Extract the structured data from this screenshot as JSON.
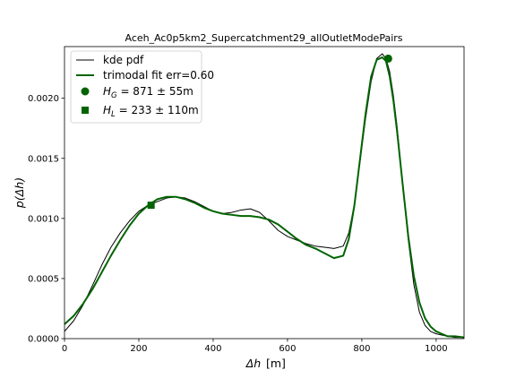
{
  "chart_data": {
    "type": "line",
    "title": "Aceh_Ac0p5km2_Supercatchment29_allOutletModePairs",
    "xlabel": {
      "symbol": "Δh",
      "unit": "[m]"
    },
    "ylabel": "p(Δh)",
    "xlim": [
      0,
      1075
    ],
    "ylim": [
      0,
      0.00243
    ],
    "xticks": [
      0,
      200,
      400,
      600,
      800,
      1000
    ],
    "xtick_labels": [
      "0",
      "200",
      "400",
      "600",
      "800",
      "1000"
    ],
    "yticks": [
      0,
      0.0005,
      0.001,
      0.0015,
      0.002
    ],
    "ytick_labels": [
      "0.0000",
      "0.0005",
      "0.0010",
      "0.0015",
      "0.0020"
    ],
    "grid": false,
    "legend_position": "top-left",
    "series": [
      {
        "name": "kde pdf",
        "color": "#000000",
        "x": [
          0,
          25,
          50,
          75,
          100,
          125,
          150,
          175,
          200,
          225,
          250,
          275,
          300,
          325,
          350,
          375,
          400,
          425,
          450,
          475,
          500,
          525,
          550,
          575,
          600,
          625,
          650,
          675,
          700,
          725,
          750,
          765,
          780,
          795,
          810,
          825,
          840,
          855,
          865,
          875,
          885,
          895,
          910,
          925,
          940,
          955,
          970,
          985,
          1000,
          1015,
          1030,
          1050,
          1075
        ],
        "y": [
          6e-05,
          0.00015,
          0.00028,
          0.00044,
          0.00061,
          0.00076,
          0.00088,
          0.00098,
          0.00106,
          0.00111,
          0.00114,
          0.00117,
          0.00118,
          0.00117,
          0.00114,
          0.0011,
          0.00106,
          0.00104,
          0.00105,
          0.00107,
          0.00108,
          0.00105,
          0.00098,
          0.0009,
          0.00085,
          0.00082,
          0.00079,
          0.00077,
          0.00076,
          0.00075,
          0.00077,
          0.00088,
          0.00112,
          0.00147,
          0.00183,
          0.00214,
          0.00233,
          0.00237,
          0.00233,
          0.00222,
          0.00202,
          0.00176,
          0.00128,
          0.00082,
          0.00045,
          0.00022,
          0.00011,
          6e-05,
          4e-05,
          3e-05,
          2e-05,
          1e-05,
          1e-05
        ]
      },
      {
        "name": "trimodal fit err=0.60",
        "color": "#006400",
        "x": [
          0,
          25,
          50,
          75,
          100,
          125,
          150,
          175,
          200,
          225,
          250,
          275,
          300,
          325,
          350,
          375,
          400,
          425,
          450,
          475,
          500,
          525,
          550,
          575,
          600,
          625,
          650,
          675,
          700,
          725,
          750,
          765,
          780,
          795,
          810,
          825,
          840,
          855,
          865,
          875,
          885,
          895,
          910,
          925,
          940,
          955,
          970,
          985,
          1000,
          1015,
          1030,
          1050,
          1075
        ],
        "y": [
          0.00012,
          0.00019,
          0.00029,
          0.00041,
          0.00055,
          0.00069,
          0.00082,
          0.00094,
          0.00104,
          0.00111,
          0.00116,
          0.00118,
          0.00118,
          0.00116,
          0.00113,
          0.00109,
          0.00106,
          0.00104,
          0.00103,
          0.00102,
          0.00102,
          0.00101,
          0.00099,
          0.00095,
          0.00089,
          0.00083,
          0.00078,
          0.00075,
          0.00071,
          0.00067,
          0.00069,
          0.00083,
          0.00111,
          0.00149,
          0.00187,
          0.00218,
          0.00232,
          0.00234,
          0.00231,
          0.00218,
          0.00198,
          0.00172,
          0.00128,
          0.00085,
          0.00052,
          0.0003,
          0.00017,
          0.0001,
          6e-05,
          4e-05,
          2e-05,
          2e-05,
          1e-05
        ]
      }
    ],
    "markers": [
      {
        "name": "H_G = 871 ± 55m",
        "shape": "circle",
        "x": 871,
        "y": 0.00233,
        "color": "#006400"
      },
      {
        "name": "H_L = 233 ± 110m",
        "shape": "square",
        "x": 233,
        "y": 0.00111,
        "color": "#006400"
      }
    ],
    "legend": [
      {
        "kind": "line",
        "color": "#000000",
        "width": 1,
        "label": "kde pdf"
      },
      {
        "kind": "line",
        "color": "#006400",
        "width": 2,
        "label": "trimodal fit err=0.60"
      },
      {
        "kind": "circle",
        "color": "#006400",
        "sym": "H",
        "sub": "G",
        "value": " = 871 ± 55m"
      },
      {
        "kind": "square",
        "color": "#006400",
        "sym": "H",
        "sub": "L",
        "value": " = 233 ± 110m"
      }
    ]
  }
}
